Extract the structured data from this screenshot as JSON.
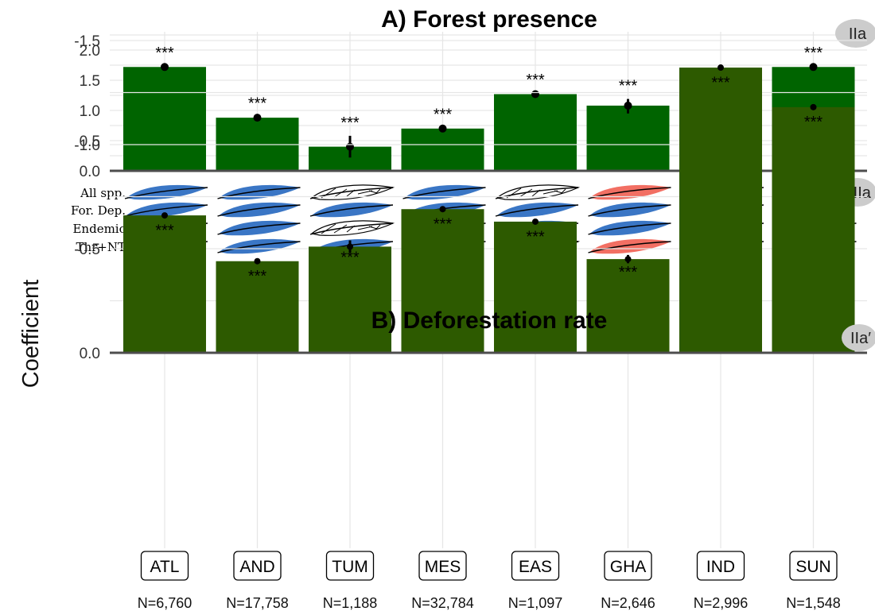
{
  "y_axis_title": "Coefficient",
  "colors": {
    "forest_bar": "#006400",
    "deforestation_bar": "#2d5a00",
    "feather_positive": "#3a76c5",
    "feather_negative": "#f26f63",
    "feather_none": "#ffffff",
    "grid": "#e6e6e6",
    "baseline": "#4d4d4d",
    "badge": "#cccccc"
  },
  "feather_rows": [
    "All spp.",
    "For. Dep.",
    "Endemic",
    "Thr+NT"
  ],
  "feather_status": [
    [
      "pos",
      "pos",
      "none",
      "pos",
      "none",
      "neg",
      "neg",
      "pos"
    ],
    [
      "pos",
      "pos",
      "pos",
      "pos",
      "pos",
      "pos",
      "pos",
      "pos"
    ],
    [
      "pos",
      "pos",
      "none",
      "pos",
      "pos",
      "pos",
      "pos",
      "pos"
    ],
    [
      "pos",
      "pos",
      "pos",
      "pos",
      "none",
      "neg",
      "pos",
      "pos"
    ]
  ],
  "badges": {
    "panel_a": "IIa",
    "feathers": "IIIa",
    "panel_b": "IIa′"
  },
  "chart_data": [
    {
      "type": "bar",
      "title": "A) Forest presence",
      "categories": [
        "ATL",
        "AND",
        "TUM",
        "MES",
        "EAS",
        "GHA",
        "IND",
        "SUN"
      ],
      "values": [
        1.72,
        0.88,
        0.4,
        0.7,
        1.27,
        1.08,
        1.26,
        1.72
      ],
      "ci_low": [
        1.7,
        0.86,
        0.22,
        0.68,
        1.25,
        0.95,
        1.24,
        1.7
      ],
      "ci_high": [
        1.74,
        0.9,
        0.58,
        0.72,
        1.29,
        1.19,
        1.28,
        1.74
      ],
      "significance": [
        "***",
        "***",
        "***",
        "***",
        "***",
        "***",
        "***",
        "***"
      ],
      "ylim": [
        0,
        2.0
      ],
      "yticks": [
        "0.0",
        "0.5",
        "1.0",
        "1.5",
        "2.0"
      ],
      "grid": true
    },
    {
      "type": "bar",
      "title": "B) Deforestation rate",
      "categories": [
        "ATL",
        "AND",
        "TUM",
        "MES",
        "EAS",
        "GHA",
        "IND",
        "SUN"
      ],
      "values": [
        -0.66,
        -0.44,
        -0.51,
        -0.69,
        -0.63,
        -0.45,
        -1.37,
        -1.18
      ],
      "ci_low": [
        -0.67,
        -0.45,
        -0.54,
        -0.7,
        -0.64,
        -0.47,
        -1.38,
        -1.19
      ],
      "ci_high": [
        -0.65,
        -0.43,
        -0.48,
        -0.68,
        -0.62,
        -0.43,
        -1.36,
        -1.17
      ],
      "significance": [
        "***",
        "***",
        "***",
        "***",
        "***",
        "***",
        "***",
        "***"
      ],
      "ylim": [
        -1.5,
        0.0
      ],
      "yticks": [
        "0.0",
        "-0.5",
        "-1.0",
        "-1.5"
      ],
      "grid": true
    }
  ],
  "sample_sizes": [
    "N=6,760",
    "N=17,758",
    "N=1,188",
    "N=32,784",
    "N=1,097",
    "N=2,646",
    "N=2,996",
    "N=1,548"
  ]
}
